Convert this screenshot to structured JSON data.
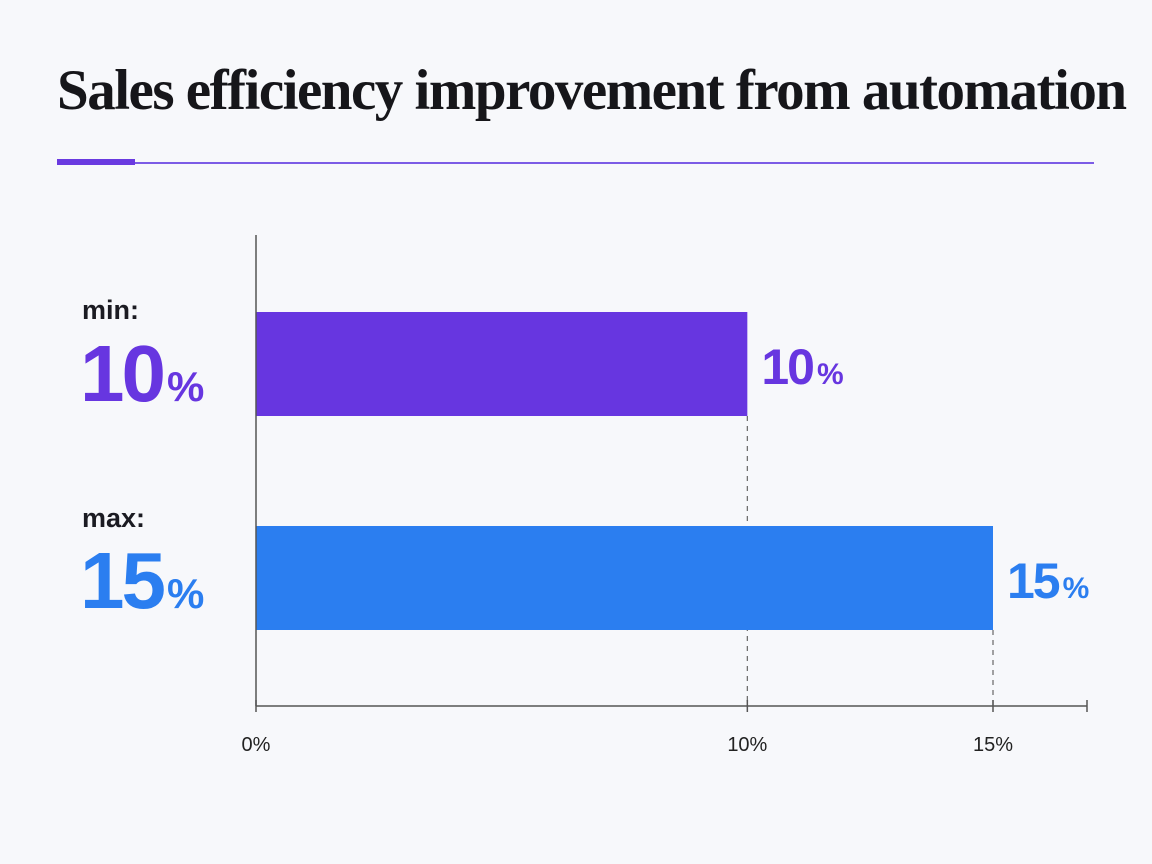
{
  "title": "Sales efficiency improvement from automation",
  "colors": {
    "min": "#6736e0",
    "max": "#2b7ef0",
    "accent": "#6a3ae0"
  },
  "side": {
    "min_label": "min:",
    "min_value": "10",
    "min_unit": "%",
    "max_label": "max:",
    "max_value": "15",
    "max_unit": "%"
  },
  "chart_data": {
    "type": "bar",
    "orientation": "horizontal",
    "categories": [
      "min",
      "max"
    ],
    "values": [
      10,
      15
    ],
    "value_labels": [
      "10",
      "15"
    ],
    "unit": "%",
    "xlim": [
      0,
      19
    ],
    "xticks": [
      0,
      10,
      15
    ],
    "xtick_labels": [
      "0%",
      "10%",
      "15%"
    ],
    "xlabel": "",
    "ylabel": "",
    "grid": false,
    "guide_lines": "dashed vertical lines at bar ends"
  }
}
